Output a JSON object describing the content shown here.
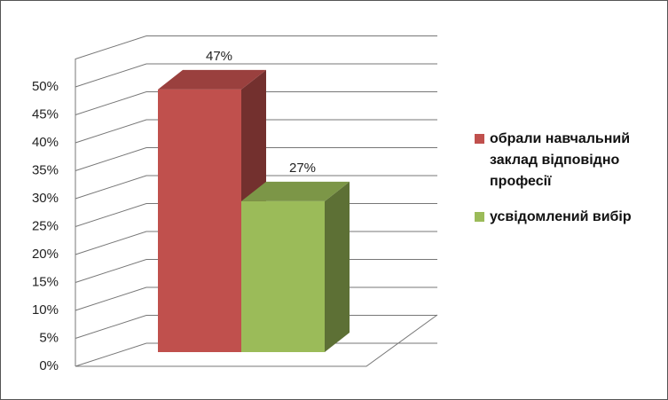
{
  "chart_data": {
    "type": "bar3d",
    "series": [
      {
        "name": "обрали навчальний заклад відповідно професії",
        "color": "#c0504d",
        "values": [
          47
        ],
        "value_labels": [
          "47%"
        ]
      },
      {
        "name": "усвідомлений вибір",
        "color": "#9bbb59",
        "values": [
          27
        ],
        "value_labels": [
          "27%"
        ]
      }
    ],
    "ylim": [
      0,
      55
    ],
    "yticks": [
      {
        "value": 0,
        "label": "0%"
      },
      {
        "value": 5,
        "label": "5%"
      },
      {
        "value": 10,
        "label": "10%"
      },
      {
        "value": 15,
        "label": "15%"
      },
      {
        "value": 20,
        "label": "20%"
      },
      {
        "value": 25,
        "label": "25%"
      },
      {
        "value": 30,
        "label": "30%"
      },
      {
        "value": 35,
        "label": "35%"
      },
      {
        "value": 40,
        "label": "40%"
      },
      {
        "value": 45,
        "label": "45%"
      },
      {
        "value": 50,
        "label": "50%"
      }
    ],
    "grid": true,
    "legend": "right"
  }
}
